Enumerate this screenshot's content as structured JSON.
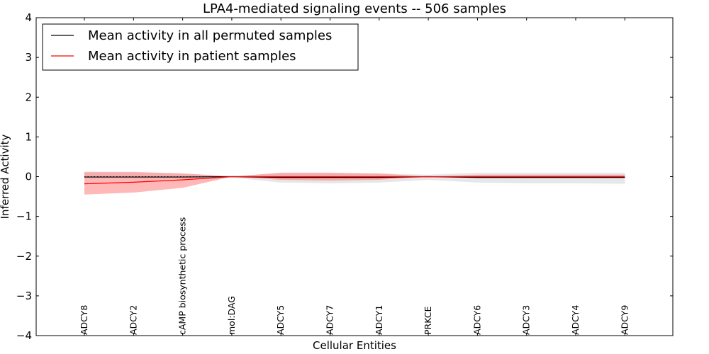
{
  "chart_data": {
    "type": "line",
    "title": "LPA4-mediated signaling events -- 506 samples",
    "xlabel": "Cellular Entities",
    "ylabel": "Inferred Activity",
    "ylim": [
      -4,
      4
    ],
    "yticks": [
      4,
      3,
      2,
      1,
      0,
      -1,
      -2,
      -3,
      -4
    ],
    "ytick_labels": [
      "4",
      "3",
      "2",
      "1",
      "0",
      "−1",
      "−2",
      "−3",
      "−4"
    ],
    "categories": [
      "ADCY8",
      "ADCY2",
      "cAMP biosynthetic process",
      "mol:DAG",
      "ADCY5",
      "ADCY7",
      "ADCY1",
      "PRKCE",
      "ADCY6",
      "ADCY3",
      "ADCY4",
      "ADCY9"
    ],
    "reference_line": {
      "y": 0,
      "style": "dotted"
    },
    "legend_position": "top-left",
    "series": [
      {
        "name": "Mean activity in all permuted samples",
        "color": "#000000",
        "band_color": "#bbbbbb",
        "values": [
          -0.01,
          -0.01,
          -0.01,
          0.0,
          -0.02,
          -0.02,
          -0.02,
          0.0,
          -0.02,
          -0.02,
          -0.02,
          -0.02
        ],
        "upper": [
          0.1,
          0.1,
          0.08,
          0.02,
          0.08,
          0.08,
          0.08,
          0.05,
          0.1,
          0.1,
          0.1,
          0.1
        ],
        "lower": [
          -0.05,
          -0.05,
          -0.05,
          -0.02,
          -0.15,
          -0.17,
          -0.15,
          -0.08,
          -0.15,
          -0.17,
          -0.17,
          -0.18
        ]
      },
      {
        "name": "Mean activity in patient samples",
        "color": "#ff0000",
        "band_color": "#ff8888",
        "values": [
          -0.18,
          -0.14,
          -0.08,
          0.0,
          0.0,
          0.0,
          0.0,
          0.0,
          0.0,
          0.0,
          0.0,
          0.0
        ],
        "upper": [
          0.12,
          0.12,
          0.08,
          0.0,
          0.1,
          0.1,
          0.08,
          0.0,
          0.05,
          0.05,
          0.05,
          0.05
        ],
        "lower": [
          -0.45,
          -0.4,
          -0.28,
          0.0,
          -0.08,
          -0.1,
          -0.08,
          0.0,
          -0.03,
          -0.03,
          -0.03,
          -0.03
        ]
      }
    ]
  }
}
